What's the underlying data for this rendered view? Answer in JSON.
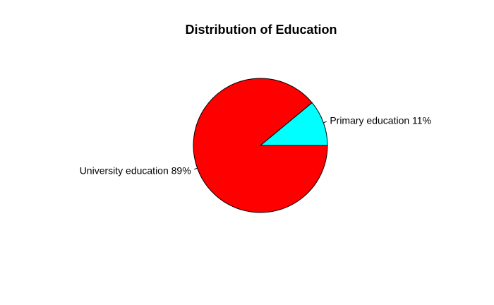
{
  "chart_data": {
    "type": "pie",
    "title": "Distribution of Education",
    "slices": [
      {
        "label": "Primary education 11%",
        "value": 11,
        "color": "#00ffff"
      },
      {
        "label": "University education 89%",
        "value": 89,
        "color": "#ff0000"
      }
    ],
    "start_angle_deg": 0,
    "direction": "counterclockwise",
    "legend": "none"
  }
}
